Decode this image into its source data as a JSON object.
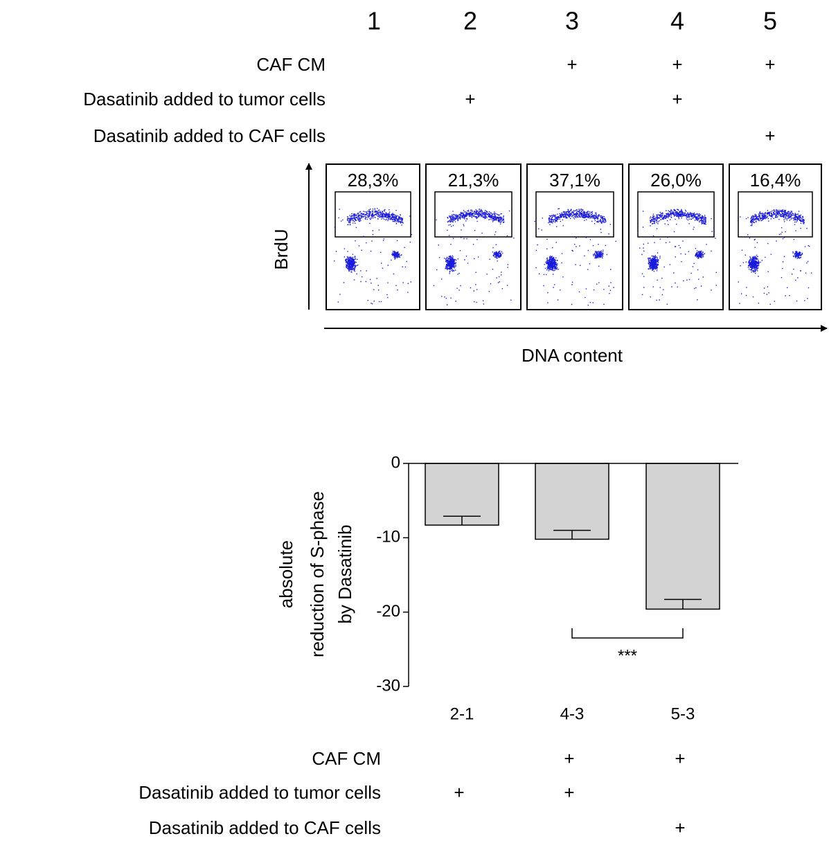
{
  "flow_panel": {
    "columns": [
      "1",
      "2",
      "3",
      "4",
      "5"
    ],
    "conditions": [
      {
        "label": "CAF CM",
        "marks": [
          null,
          null,
          "+",
          "+",
          "+"
        ]
      },
      {
        "label": "Dasatinib added to tumor cells",
        "marks": [
          null,
          "+",
          null,
          "+",
          null
        ]
      },
      {
        "label": "Dasatinib added to CAF cells",
        "marks": [
          null,
          null,
          null,
          null,
          "+"
        ]
      }
    ],
    "percentages": [
      "28,3%",
      "21,3%",
      "37,1%",
      "26,0%",
      "16,4%"
    ],
    "y_axis_label": "BrdU",
    "x_axis_label": "DNA content"
  },
  "chart_data": {
    "type": "bar",
    "ylabel": [
      "absolute",
      "reduction of S-phase",
      "by Dasatinib"
    ],
    "categories": [
      "2-1",
      "4-3",
      "5-3"
    ],
    "values": [
      -8.3,
      -10.2,
      -19.6
    ],
    "errors": [
      1.2,
      1.2,
      1.3
    ],
    "color": "#d3d3d3",
    "ylim": [
      -30,
      0
    ],
    "yticks": [
      0,
      -10,
      -20,
      -30
    ],
    "significance": "***",
    "conditions": [
      {
        "label": "CAF CM",
        "marks": [
          null,
          "+",
          "+"
        ]
      },
      {
        "label": "Dasatinib added to tumor cells",
        "marks": [
          "+",
          "+",
          null
        ]
      },
      {
        "label": "Dasatinib added to CAF cells",
        "marks": [
          null,
          null,
          "+"
        ]
      }
    ]
  }
}
